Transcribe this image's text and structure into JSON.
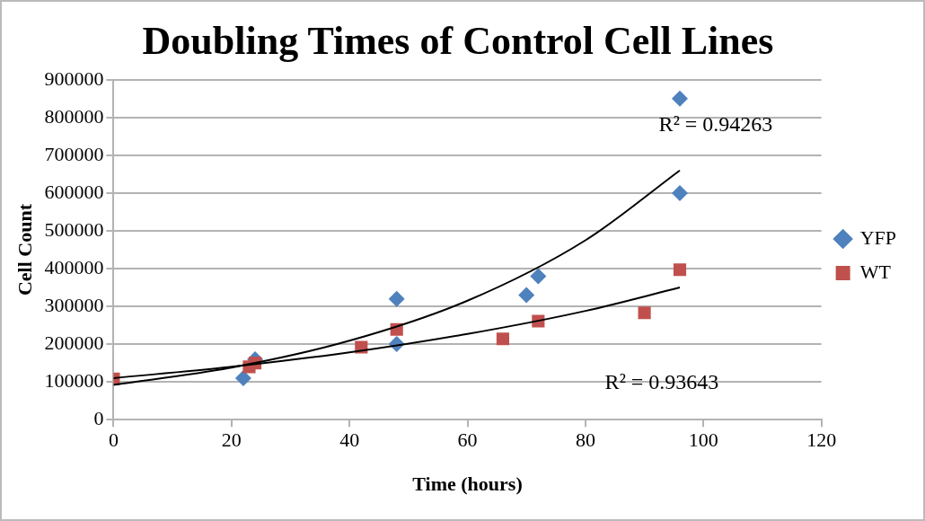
{
  "chart_data": {
    "type": "scatter",
    "title": "Doubling Times of Control Cell Lines",
    "xlabel": "Time (hours)",
    "ylabel": "Cell Count",
    "xlim": [
      0,
      120
    ],
    "xticks": [
      0,
      20,
      40,
      60,
      80,
      100,
      120
    ],
    "ylim": [
      0,
      900000
    ],
    "yticks": [
      0,
      100000,
      200000,
      300000,
      400000,
      500000,
      600000,
      700000,
      800000,
      900000
    ],
    "grid": "y",
    "legend": "right",
    "series": [
      {
        "name": "YFP",
        "color": "#4f81bd",
        "marker": "diamond",
        "x": [
          22,
          24,
          48,
          48,
          70,
          72,
          96,
          96
        ],
        "values": [
          110000,
          160000,
          320000,
          200000,
          330000,
          380000,
          850000,
          600000
        ]
      },
      {
        "name": "WT",
        "color": "#c0504d",
        "marker": "square",
        "x": [
          0,
          23,
          24,
          42,
          48,
          66,
          72,
          90,
          96
        ],
        "values": [
          108000,
          140000,
          150000,
          192000,
          239000,
          214000,
          261000,
          283000,
          397000
        ]
      },
      {
        "type": "line",
        "color": "#000000",
        "marker": "none",
        "x": [
          0,
          20,
          40,
          60,
          80,
          96
        ],
        "values": [
          92000,
          138000,
          209000,
          315000,
          475000,
          660000
        ]
      },
      {
        "type": "line",
        "color": "#000000",
        "marker": "none",
        "x": [
          0,
          20,
          40,
          60,
          80,
          96
        ],
        "values": [
          110000,
          140000,
          178000,
          227000,
          288000,
          350000
        ]
      }
    ],
    "annotations": [
      "R² = 0.94263",
      "R² = 0.93643"
    ]
  }
}
